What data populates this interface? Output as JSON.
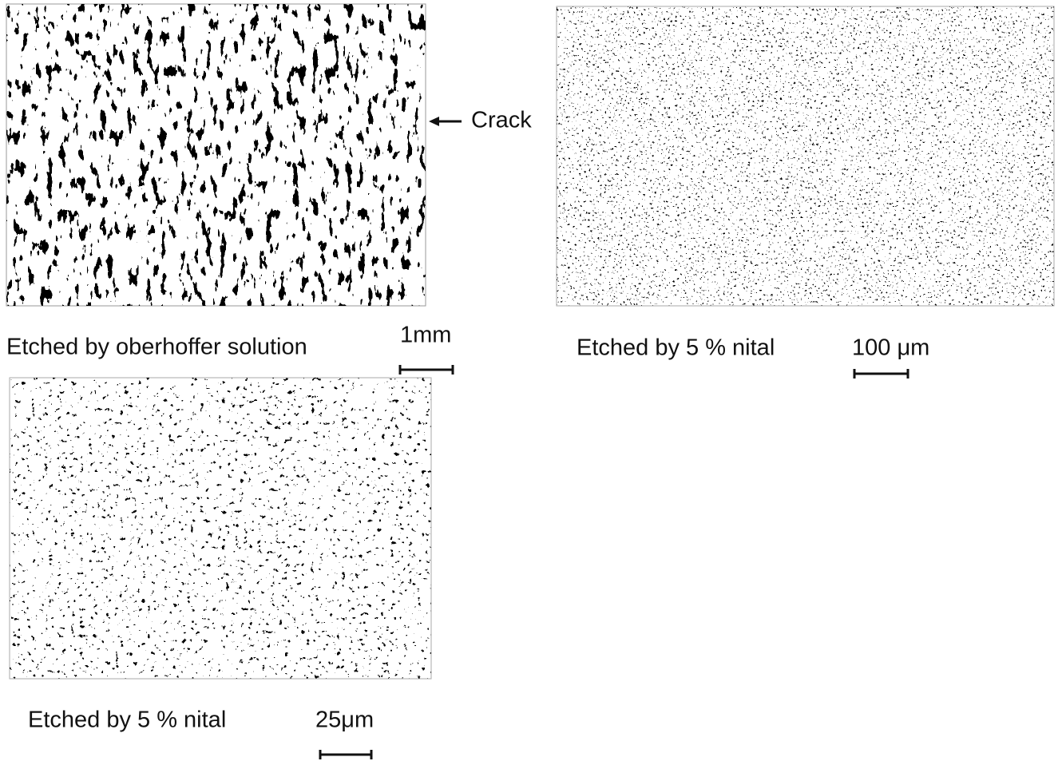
{
  "panels": [
    {
      "caption": "Etched by oberhoffer solution",
      "scale_label": "1mm",
      "annotation": "Crack"
    },
    {
      "caption": "Etched by 5 % nital",
      "scale_label": "100 μm"
    },
    {
      "caption": "Etched by 5 % nital",
      "scale_label": "25μm"
    }
  ]
}
